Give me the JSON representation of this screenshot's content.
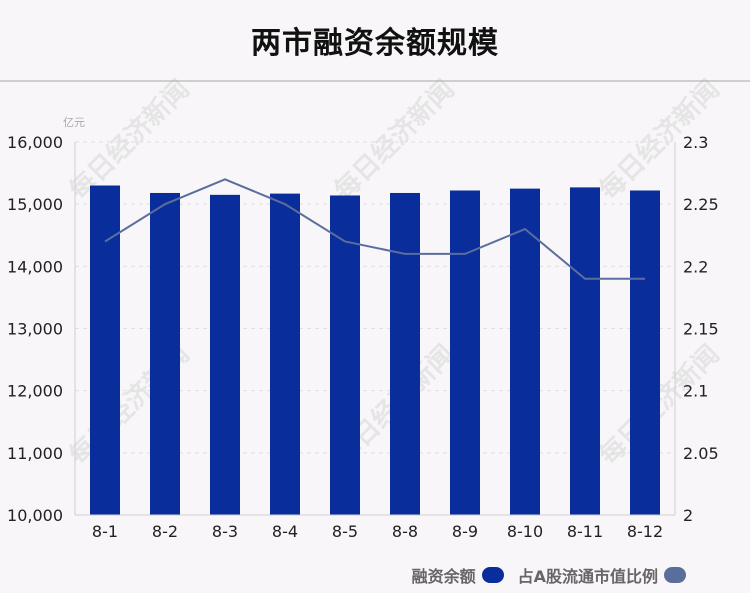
{
  "page": {
    "title": "两市融资余额规模",
    "watermark": "每日经济新闻"
  },
  "colors": {
    "bar": "#0a2d9c",
    "line": "#5a6e9c",
    "grid": "#e0e0e0",
    "axis": "#cfcfcf"
  },
  "chart_data": {
    "type": "bar",
    "title": "两市融资余额规模",
    "y_unit": "亿元",
    "categories": [
      "8-1",
      "8-2",
      "8-3",
      "8-4",
      "8-5",
      "8-8",
      "8-9",
      "8-10",
      "8-11",
      "8-12"
    ],
    "series": [
      {
        "name": "融资余额",
        "type": "bar",
        "axis": "left",
        "values": [
          15300,
          15180,
          15150,
          15170,
          15140,
          15180,
          15220,
          15250,
          15270,
          15220
        ]
      },
      {
        "name": "占A股流通市值比例",
        "type": "line",
        "axis": "right",
        "values": [
          2.22,
          2.25,
          2.27,
          2.25,
          2.22,
          2.21,
          2.21,
          2.23,
          2.19,
          2.19
        ]
      }
    ],
    "y_left": {
      "min": 10000,
      "max": 16000,
      "ticks": [
        "10,000",
        "11,000",
        "12,000",
        "13,000",
        "14,000",
        "15,000",
        "16,000"
      ]
    },
    "y_right": {
      "min": 2,
      "max": 2.3,
      "ticks": [
        "2",
        "2.05",
        "2.1",
        "2.15",
        "2.2",
        "2.25",
        "2.3"
      ]
    },
    "grid": true,
    "legend": "bottom-right"
  }
}
